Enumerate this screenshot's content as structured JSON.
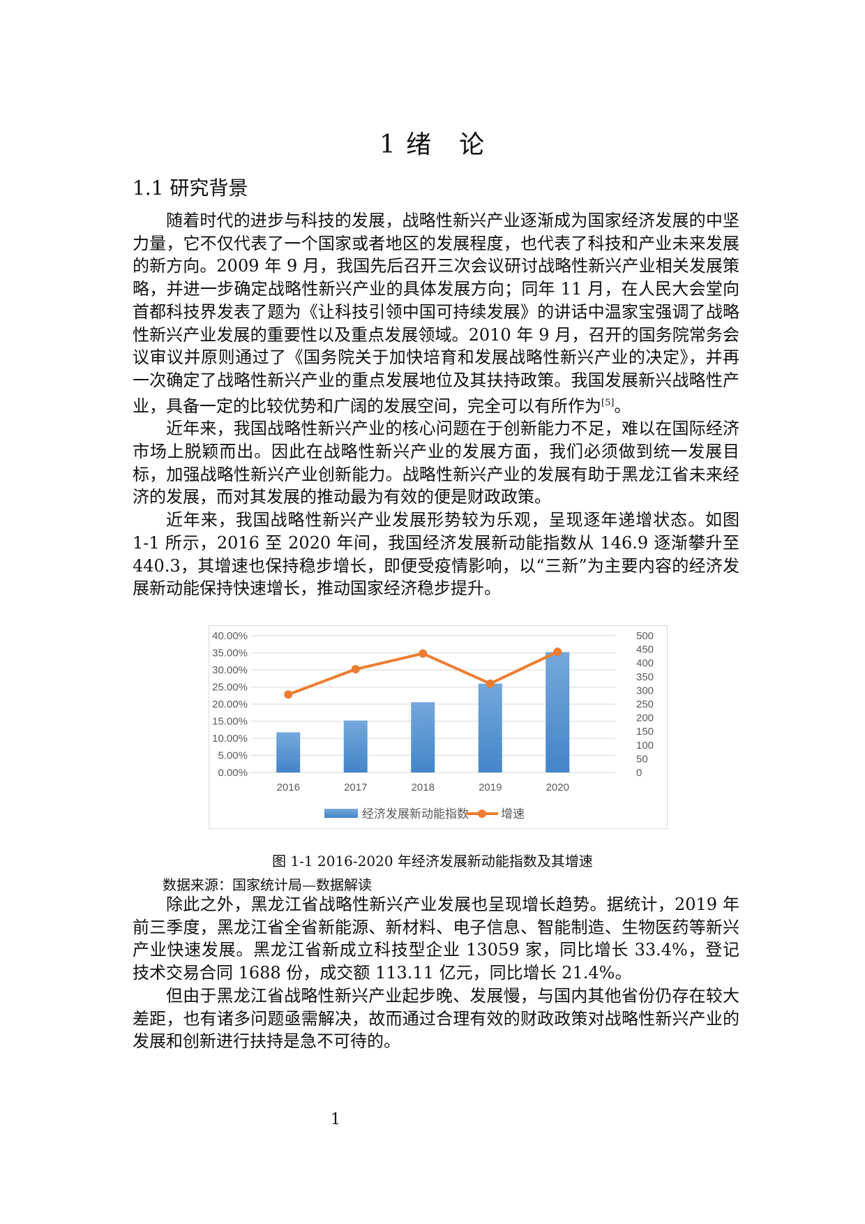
{
  "title": "1 绪　论",
  "section": "1.1 研究背景",
  "paragraphs_before": [
    "随着时代的进步与科技的发展，战略性新兴产业逐渐成为国家经济发展的中坚力量，它不仅代表了一个国家或者地区的发展程度，也代表了科技和产业未来发展的新方向。2009 年 9 月，我国先后召开三次会议研讨战略性新兴产业相关发展策略，并进一步确定战略性新兴产业的具体发展方向；同年 11 月，在人民大会堂向首都科技界发表了题为《让科技引领中国可持续发展》的讲话中温家宝强调了战略性新兴产业发展的重要性以及重点发展领域。2010 年 9 月，召开的国务院常务会议审议并原则通过了《国务院关于加快培育和发展战略性新兴产业的决定》，并再一次确定了战略性新兴产业的重点发展地位及其扶持政策。我国发展新兴战略性产业，具备一定的比较优势和广阔的发展空间，完全可以有所作为",
    "近年来，我国战略性新兴产业的核心问题在于创新能力不足，难以在国际经济市场上脱颖而出。因此在战略性新兴产业的发展方面，我们必须做到统一发展目标，加强战略性新兴产业创新能力。战略性新兴产业的发展有助于黑龙江省未来经济的发展，而对其发展的推动最为有效的便是财政政策。",
    "近年来，我国战略性新兴产业发展形势较为乐观，呈现逐年递增状态。如图 1-1 所示，2016 至 2020 年间，我国经济发展新动能指数从 146.9 逐渐攀升至 440.3，其增速也保持稳步增长，即便受疫情影响，以“三新”为主要内容的经济发展新动能保持快速增长，推动国家经济稳步提升。"
  ],
  "citation": "[5]",
  "citation_end": "。",
  "figure_caption": "图 1-1 2016-2020 年经济发展新动能指数及其增速",
  "figure_source": "数据来源：国家统计局—数据解读",
  "paragraphs_after": [
    "除此之外，黑龙江省战略性新兴产业发展也呈现增长趋势。据统计，2019 年前三季度，黑龙江省全省新能源、新材料、电子信息、智能制造、生物医药等新兴产业快速发展。黑龙江省新成立科技型企业 13059 家，同比增长 33.4%，登记技术交易合同 1688 份，成交额 113.11 亿元，同比增长 21.4%。",
    "但由于黑龙江省战略性新兴产业起步晚、发展慢，与国内其他省份仍存在较大差距，也有诸多问题亟需解决，故而通过合理有效的财政政策对战略性新兴产业的发展和创新进行扶持是急不可待的。"
  ],
  "page_number": "1",
  "chart_data": {
    "type": "bar+line",
    "categories": [
      "2016",
      "2017",
      "2018",
      "2019",
      "2020"
    ],
    "series": [
      {
        "name": "经济发展新动能指数",
        "type": "bar",
        "axis": "right",
        "values": [
          146.9,
          190,
          257,
          325,
          440.3
        ],
        "color": "#5b9bd5"
      },
      {
        "name": "增速",
        "type": "line",
        "axis": "left",
        "values": [
          22.8,
          30.2,
          34.8,
          26.0,
          35.3
        ],
        "color": "#ed7d31"
      }
    ],
    "left_axis": {
      "ylim": [
        0,
        40
      ],
      "ticks": [
        "0.00%",
        "5.00%",
        "10.00%",
        "15.00%",
        "20.00%",
        "25.00%",
        "30.00%",
        "35.00%",
        "40.00%"
      ]
    },
    "right_axis": {
      "ylim": [
        0,
        500
      ],
      "ticks": [
        "0",
        "50",
        "100",
        "150",
        "200",
        "250",
        "300",
        "350",
        "400",
        "450",
        "500"
      ]
    },
    "grid": true,
    "legend": "bottom"
  }
}
